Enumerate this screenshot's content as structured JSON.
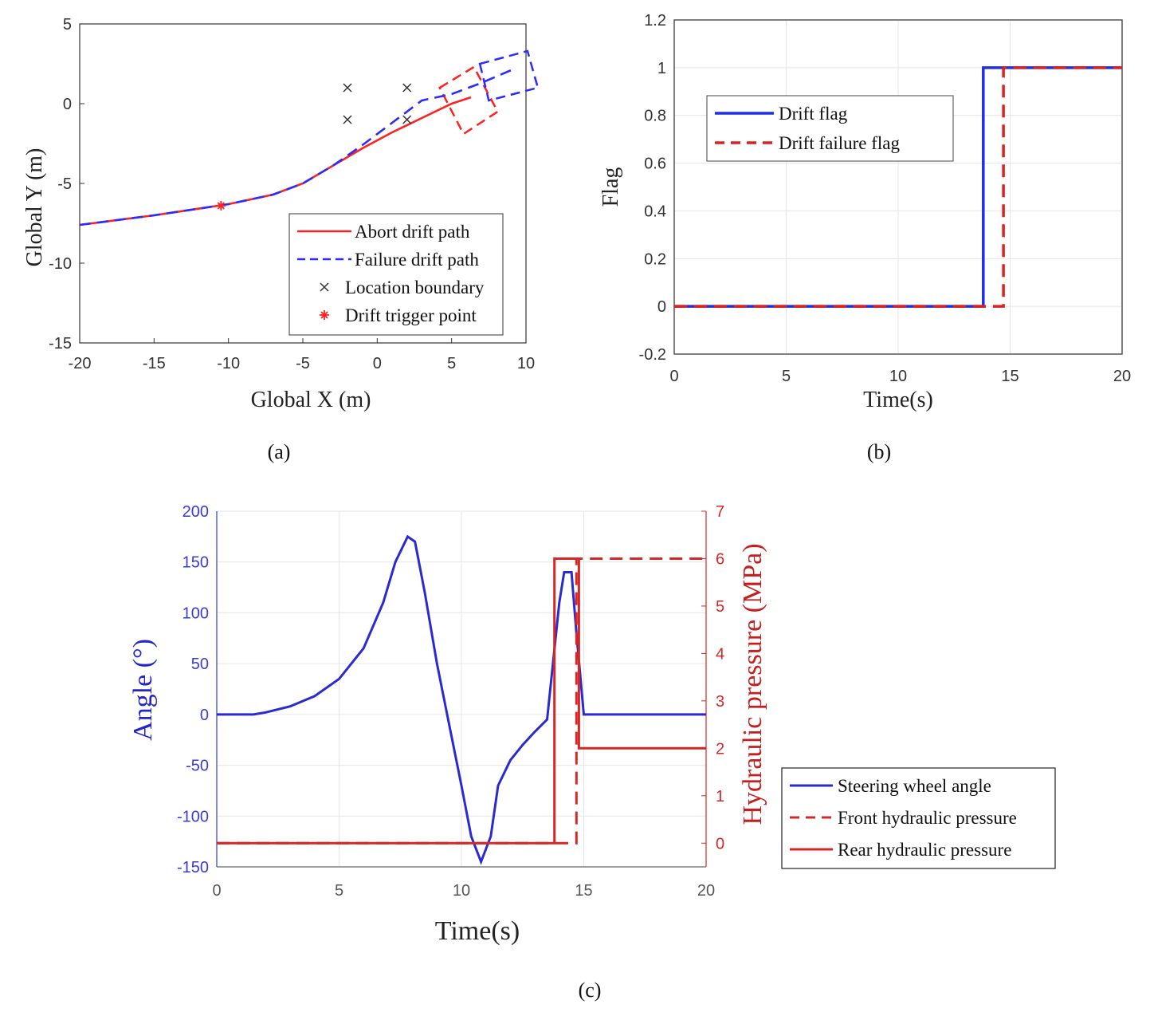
{
  "captions": {
    "a": "(a)",
    "b": "(b)",
    "c": "(c)"
  },
  "chart_data": [
    {
      "id": "a",
      "type": "line",
      "xlabel": "Global X (m)",
      "ylabel": "Global Y (m)",
      "xlim": [
        -20,
        10
      ],
      "ylim": [
        -15,
        5
      ],
      "xticks": [
        -20,
        -15,
        -10,
        -5,
        0,
        5,
        10
      ],
      "yticks": [
        -15,
        -10,
        -5,
        0,
        5
      ],
      "grid": false,
      "legend_position": "bottom-right",
      "series": [
        {
          "name": "Abort drift path",
          "style": "solid",
          "color": "#ff2020",
          "x": [
            -20,
            -15,
            -10,
            -7,
            -5,
            -3,
            -1,
            1,
            3,
            5,
            6.3
          ],
          "y": [
            -7.6,
            -7.0,
            -6.3,
            -5.7,
            -5.0,
            -3.9,
            -2.8,
            -1.8,
            -0.9,
            0,
            0.4
          ]
        },
        {
          "name": "Failure drift path",
          "style": "dashed",
          "color": "#2b2bff",
          "x": [
            -20,
            -15,
            -10,
            -7,
            -5,
            -3,
            -1,
            1,
            3,
            5,
            7,
            9
          ],
          "y": [
            -7.6,
            -7.0,
            -6.3,
            -5.7,
            -5.0,
            -3.9,
            -2.6,
            -1.2,
            0.2,
            0.6,
            1.3,
            2.1
          ]
        },
        {
          "name": "Location boundary",
          "style": "marker-x",
          "color": "#333333",
          "x": [
            -2,
            -2,
            2,
            2
          ],
          "y": [
            1,
            -1,
            1,
            -1
          ]
        },
        {
          "name": "Drift trigger point",
          "style": "marker-star",
          "color": "#ff2020",
          "x": [
            -10.5
          ],
          "y": [
            -6.4
          ]
        }
      ],
      "vehicle_boxes": [
        {
          "color": "#ff2020",
          "corners": [
            [
              4.2,
              1.0
            ],
            [
              6.5,
              2.3
            ],
            [
              8.1,
              -0.5
            ],
            [
              5.8,
              -1.9
            ]
          ]
        },
        {
          "color": "#2b2bff",
          "corners": [
            [
              6.9,
              2.5
            ],
            [
              10.1,
              3.3
            ],
            [
              10.8,
              1.0
            ],
            [
              7.5,
              0.2
            ]
          ]
        }
      ]
    },
    {
      "id": "b",
      "type": "line",
      "xlabel": "Time(s)",
      "ylabel": "Flag",
      "xlim": [
        0,
        20
      ],
      "ylim": [
        -0.2,
        1.2
      ],
      "xticks": [
        0,
        5,
        10,
        15,
        20
      ],
      "yticks": [
        -0.2,
        0,
        0.2,
        0.4,
        0.6,
        0.8,
        1,
        1.2
      ],
      "grid": true,
      "legend_position": "top-left",
      "series": [
        {
          "name": "Drift flag",
          "style": "solid",
          "color": "#1f2ee0",
          "x": [
            0,
            13.8,
            13.8,
            20
          ],
          "y": [
            0,
            0,
            1,
            1
          ]
        },
        {
          "name": "Drift failure flag",
          "style": "dashed",
          "color": "#e02020",
          "x": [
            0,
            14.7,
            14.7,
            20
          ],
          "y": [
            0,
            0,
            1,
            1
          ]
        }
      ]
    },
    {
      "id": "c",
      "type": "line",
      "xlabel": "Time(s)",
      "ylabel": "Angle (°)",
      "y2label": "Hydraulic pressure (MPa)",
      "xlim": [
        0,
        20
      ],
      "ylim": [
        -150,
        200
      ],
      "y2lim": [
        -0.5,
        7
      ],
      "xticks": [
        0,
        5,
        10,
        15,
        20
      ],
      "yticks": [
        -150,
        -100,
        -50,
        0,
        50,
        100,
        150,
        200
      ],
      "y2ticks": [
        0,
        1,
        2,
        3,
        4,
        5,
        6,
        7
      ],
      "grid": true,
      "legend_position": "outside-right",
      "series": [
        {
          "name": "Steering wheel angle",
          "axis": "left",
          "style": "solid",
          "color": "#2a2ad0",
          "x": [
            0,
            1.5,
            2,
            3,
            4,
            5,
            6,
            6.8,
            7.3,
            7.8,
            8.1,
            8.5,
            9,
            9.5,
            10,
            10.4,
            10.8,
            11.2,
            11.5,
            12,
            12.5,
            13,
            13.5,
            14,
            14.2,
            14.5,
            14.7,
            15,
            20
          ],
          "y": [
            0,
            0,
            2,
            8,
            18,
            35,
            65,
            110,
            150,
            175,
            170,
            120,
            50,
            -10,
            -70,
            -120,
            -145,
            -120,
            -70,
            -45,
            -30,
            -17,
            -5,
            110,
            140,
            140,
            80,
            0,
            0
          ]
        },
        {
          "name": "Front hydraulic pressure",
          "axis": "right",
          "style": "dashed",
          "color": "#d42828",
          "x": [
            0,
            14.7,
            14.7,
            20
          ],
          "y": [
            0,
            0,
            6,
            6
          ]
        },
        {
          "name": "Rear hydraulic pressure",
          "axis": "right",
          "style": "solid",
          "color": "#d42828",
          "x": [
            0,
            13.8,
            13.8,
            14.8,
            14.8,
            20
          ],
          "y": [
            0,
            0,
            6,
            6,
            2,
            2
          ]
        }
      ]
    }
  ]
}
